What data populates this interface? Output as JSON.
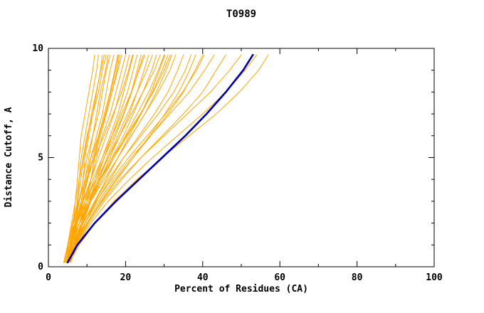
{
  "chart_data": {
    "type": "line",
    "title": "T0989",
    "xlabel": "Percent of Residues (CA)",
    "ylabel": "Distance Cutoff, A",
    "xlim": [
      0,
      100
    ],
    "ylim": [
      0,
      10
    ],
    "x_ticks": [
      0,
      20,
      40,
      60,
      80,
      100
    ],
    "x_minor_ticks": [
      10,
      30,
      50,
      70,
      90
    ],
    "y_ticks": [
      0,
      5,
      10
    ],
    "y_minor_ticks": [
      1,
      2,
      3,
      4,
      6,
      7,
      8,
      9
    ],
    "grid": false,
    "legend": "none",
    "colors": {
      "model": "#ffa500",
      "highlight": "#0000aa",
      "axis": "#000000"
    },
    "y_levels": [
      0.2,
      1,
      2,
      3,
      4,
      5,
      6,
      7,
      8,
      9,
      9.7
    ],
    "series": [
      {
        "x": [
          5,
          6,
          6.5,
          7,
          7.5,
          8,
          8.5,
          9.5,
          10.5,
          11.5,
          12
        ]
      },
      {
        "x": [
          4.5,
          5.5,
          6.5,
          7.5,
          8,
          8.5,
          9.5,
          10.5,
          11.5,
          12.5,
          13
        ]
      },
      {
        "x": [
          5,
          6,
          7,
          8,
          9,
          9.5,
          10.5,
          11.5,
          12.5,
          13.5,
          14
        ]
      },
      {
        "x": [
          4,
          5,
          6,
          7,
          8,
          9,
          10,
          11.5,
          13,
          14,
          15
        ]
      },
      {
        "x": [
          5.5,
          6.5,
          7.5,
          8.5,
          9.5,
          10.5,
          11.5,
          12.5,
          13.5,
          14.8,
          15.5
        ]
      },
      {
        "x": [
          4.5,
          5.5,
          7,
          8,
          9,
          10,
          11.5,
          13,
          14,
          15,
          16
        ]
      },
      {
        "x": [
          5,
          6,
          7.5,
          9,
          10,
          11,
          12.5,
          14,
          15,
          16,
          17
        ]
      },
      {
        "x": [
          4.5,
          6,
          7,
          8.5,
          10,
          11.5,
          13,
          14.5,
          16,
          17.2,
          18
        ]
      },
      {
        "x": [
          5.5,
          7,
          8.5,
          10,
          11,
          12,
          13.5,
          15,
          16.5,
          17.8,
          18.5
        ]
      },
      {
        "x": [
          4,
          5,
          6.5,
          8,
          9.5,
          11,
          13,
          15,
          16.5,
          18,
          19
        ]
      },
      {
        "x": [
          5,
          6.5,
          8,
          9.5,
          11,
          12.5,
          14,
          16,
          17.5,
          19,
          20
        ]
      },
      {
        "x": [
          4.5,
          6,
          7.5,
          9,
          11,
          13,
          15,
          17,
          18.5,
          20,
          21
        ]
      },
      {
        "x": [
          5,
          6,
          8,
          10,
          12,
          14,
          16,
          18,
          19.5,
          21,
          22
        ]
      },
      {
        "x": [
          4.5,
          6.5,
          8.5,
          10.5,
          12.5,
          14.5,
          16.5,
          18.5,
          20.5,
          22,
          23
        ]
      },
      {
        "x": [
          5,
          6,
          7.5,
          9.5,
          12,
          14.5,
          17,
          19.5,
          21.5,
          23,
          24
        ]
      },
      {
        "x": [
          4,
          5.5,
          7,
          9,
          11.5,
          14,
          16.5,
          19,
          21.5,
          23.5,
          25
        ]
      },
      {
        "x": [
          5.5,
          7,
          9,
          11,
          13.5,
          16,
          18.5,
          21,
          23,
          24.8,
          26
        ]
      },
      {
        "x": [
          4.5,
          6,
          8,
          10.5,
          13,
          15.5,
          18,
          20.5,
          23,
          25.5,
          27
        ]
      },
      {
        "x": [
          5,
          6.5,
          8.5,
          11,
          13.5,
          16.5,
          19.5,
          22,
          24.5,
          26.8,
          28
        ]
      },
      {
        "x": [
          4,
          5,
          7,
          9.5,
          12.5,
          15.5,
          18.5,
          21.5,
          24.5,
          27.5,
          29
        ]
      },
      {
        "x": [
          5,
          6.5,
          8.5,
          11,
          14,
          17,
          20,
          23,
          26,
          28.5,
          30
        ]
      },
      {
        "x": [
          4.5,
          6,
          8,
          10.5,
          13.5,
          17,
          20.5,
          24,
          27,
          29.5,
          31
        ]
      },
      {
        "x": [
          5,
          6.5,
          9,
          12,
          15,
          18,
          21.5,
          25,
          28,
          30.5,
          32
        ]
      },
      {
        "x": [
          4.5,
          6,
          8,
          11,
          14.5,
          18,
          21.5,
          25,
          28.5,
          31.5,
          33
        ]
      },
      {
        "x": [
          5,
          7,
          9.5,
          12.5,
          16,
          19.5,
          23.5,
          27.5,
          31,
          33.5,
          35
        ]
      },
      {
        "x": [
          4.5,
          6.5,
          9,
          12,
          15.5,
          19.5,
          24,
          28.5,
          32.5,
          35.5,
          37
        ]
      },
      {
        "x": [
          5,
          7,
          10,
          13.5,
          17.5,
          22,
          26.5,
          31,
          35,
          38,
          40
        ]
      },
      {
        "x": [
          4.5,
          6.5,
          9.5,
          13,
          17,
          21.5,
          26.5,
          31.5,
          36.5,
          40.5,
          43
        ]
      },
      {
        "x": [
          5,
          7.5,
          10.5,
          14.5,
          19,
          24,
          29.5,
          35,
          40,
          43.5,
          46
        ]
      },
      {
        "x": [
          4.5,
          7,
          10,
          14,
          18.5,
          24,
          30,
          36,
          42,
          47,
          50
        ]
      },
      {
        "x": [
          5,
          7.5,
          11,
          15.5,
          21,
          27,
          33.5,
          40,
          46,
          51,
          54
        ]
      },
      {
        "x": [
          5.5,
          8,
          12,
          17,
          23,
          29.5,
          36.5,
          43.5,
          49.5,
          54.5,
          57
        ]
      },
      {
        "x": [
          5.5,
          6.2,
          6.8,
          7.6,
          8.4,
          9.2,
          10.2,
          11.2,
          12.4,
          13.6,
          14.5
        ]
      },
      {
        "x": [
          4.8,
          5.8,
          7.2,
          8.8,
          10.2,
          11.8,
          13.2,
          14.8,
          16.2,
          17.4,
          18.2
        ]
      },
      {
        "x": [
          5.2,
          6.8,
          8.8,
          10.8,
          13,
          15.2,
          17.4,
          19.6,
          21.6,
          23.4,
          24.6
        ]
      },
      {
        "x": [
          4.2,
          5.2,
          6.2,
          7.8,
          9.8,
          12,
          14.4,
          16.8,
          19,
          20.8,
          21.8
        ]
      },
      {
        "x": [
          5.8,
          7.4,
          9.6,
          12.2,
          15,
          18,
          21,
          24,
          26.6,
          28.8,
          30.2
        ]
      },
      {
        "x": [
          4.6,
          5.6,
          7.4,
          10,
          13.2,
          16.6,
          20.2,
          23.8,
          27.2,
          30,
          31.6
        ]
      },
      {
        "x": [
          5.4,
          7.2,
          10.2,
          13.8,
          17.8,
          22,
          26.2,
          30.2,
          33.8,
          36.6,
          38.2
        ]
      },
      {
        "x": [
          4.4,
          6.2,
          9,
          12.4,
          16.4,
          20.8,
          25.6,
          30.4,
          34.8,
          38.4,
          40.4
        ]
      },
      {
        "x": [
          5,
          7.5,
          12,
          17.5,
          23.5,
          29.5,
          35.5,
          41,
          46,
          50.5,
          53
        ],
        "color": "#0000aa",
        "width": 2.6,
        "name": "highlight-curve"
      }
    ]
  }
}
